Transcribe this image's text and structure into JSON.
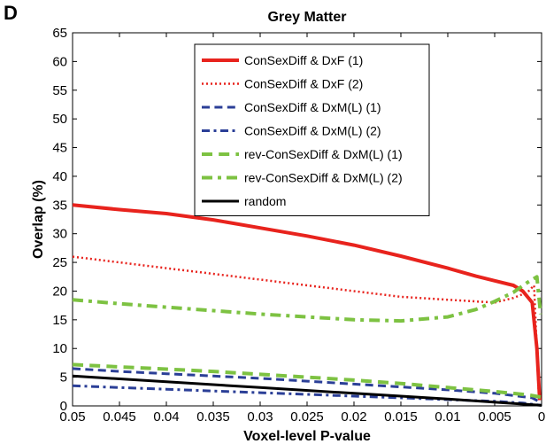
{
  "panel_label": "D",
  "chart_data": {
    "type": "line",
    "title": "Grey Matter",
    "xlabel": "Voxel-level P-value",
    "ylabel": "Overlap (%)",
    "xlim": [
      0.05,
      0
    ],
    "ylim": [
      0,
      65
    ],
    "x_reversed": true,
    "grid": false,
    "legend_position": "top-center",
    "x_ticks": [
      0.05,
      0.045,
      0.04,
      0.035,
      0.03,
      0.025,
      0.02,
      0.015,
      0.01,
      0.005,
      0
    ],
    "x_tick_labels": [
      "0.05",
      "0.045",
      "0.04",
      "0.035",
      "0.03",
      "0.025",
      "0.02",
      "0.015",
      "0.01",
      "0.005",
      "0"
    ],
    "y_ticks": [
      0,
      5,
      10,
      15,
      20,
      25,
      30,
      35,
      40,
      45,
      50,
      55,
      60,
      65
    ],
    "y_tick_labels": [
      "0",
      "5",
      "10",
      "15",
      "20",
      "25",
      "30",
      "35",
      "40",
      "45",
      "50",
      "55",
      "60",
      "65"
    ],
    "series": [
      {
        "name": "ConSexDiff & DxF (1)",
        "color": "#e8231d",
        "style": "solid",
        "width": 4,
        "x": [
          0.05,
          0.045,
          0.04,
          0.035,
          0.03,
          0.025,
          0.02,
          0.015,
          0.01,
          0.007,
          0.005,
          0.003,
          0.002,
          0.001,
          0.0005,
          0.0002
        ],
        "y": [
          35,
          34.2,
          33.5,
          32.4,
          31.0,
          29.6,
          28.0,
          26.1,
          24.0,
          22.6,
          21.8,
          21.0,
          20.0,
          18.0,
          10,
          1
        ]
      },
      {
        "name": "ConSexDiff & DxF (2)",
        "color": "#e8231d",
        "style": "dotted",
        "width": 2.5,
        "x": [
          0.05,
          0.045,
          0.04,
          0.035,
          0.03,
          0.025,
          0.02,
          0.015,
          0.01,
          0.005,
          0.003,
          0.0015,
          0.0008,
          0.0003
        ],
        "y": [
          26,
          25.0,
          24.0,
          23.0,
          22.0,
          21.0,
          20.0,
          19.0,
          18.5,
          18.0,
          18.8,
          19.8,
          21.0,
          2
        ]
      },
      {
        "name": "ConSexDiff & DxM(L) (1)",
        "color": "#2b3f97",
        "style": "dashed",
        "width": 3,
        "x": [
          0.05,
          0.045,
          0.04,
          0.035,
          0.03,
          0.025,
          0.02,
          0.015,
          0.01,
          0.005,
          0.002,
          0.001,
          0
        ],
        "y": [
          6.5,
          6.0,
          5.6,
          5.2,
          4.8,
          4.3,
          3.8,
          3.3,
          2.8,
          2.2,
          1.6,
          1.4,
          0.5
        ]
      },
      {
        "name": "ConSexDiff & DxM(L) (2)",
        "color": "#2b3f97",
        "style": "dashdot",
        "width": 3,
        "x": [
          0.05,
          0.045,
          0.04,
          0.035,
          0.03,
          0.025,
          0.02,
          0.015,
          0.01,
          0.005,
          0.002,
          0.001,
          0
        ],
        "y": [
          3.5,
          3.2,
          2.9,
          2.6,
          2.3,
          2.0,
          1.7,
          1.4,
          1.1,
          0.8,
          0.5,
          0.3,
          0.1
        ]
      },
      {
        "name": "rev-ConSexDiff & DxM(L) (1)",
        "color": "#7dc242",
        "style": "dashed",
        "width": 4,
        "x": [
          0.05,
          0.045,
          0.04,
          0.035,
          0.03,
          0.025,
          0.02,
          0.015,
          0.01,
          0.005,
          0.002,
          0.001,
          0
        ],
        "y": [
          7.2,
          6.8,
          6.4,
          6.0,
          5.5,
          5.0,
          4.5,
          3.9,
          3.2,
          2.5,
          2.0,
          1.8,
          1.5
        ]
      },
      {
        "name": "rev-ConSexDiff & DxM(L) (2)",
        "color": "#7dc242",
        "style": "dashdot",
        "width": 4,
        "x": [
          0.05,
          0.045,
          0.04,
          0.035,
          0.03,
          0.025,
          0.02,
          0.015,
          0.01,
          0.007,
          0.005,
          0.003,
          0.0015,
          0.0005,
          0.0001
        ],
        "y": [
          18.5,
          17.8,
          17.2,
          16.6,
          16.0,
          15.5,
          15.0,
          14.8,
          15.5,
          16.8,
          18.2,
          19.8,
          21.5,
          22.5,
          16
        ]
      },
      {
        "name": "random",
        "color": "#000000",
        "style": "solid",
        "width": 3,
        "x": [
          0.05,
          0.04,
          0.03,
          0.02,
          0.01,
          0
        ],
        "y": [
          5.2,
          4.2,
          3.2,
          2.2,
          1.2,
          0.1
        ]
      }
    ]
  }
}
